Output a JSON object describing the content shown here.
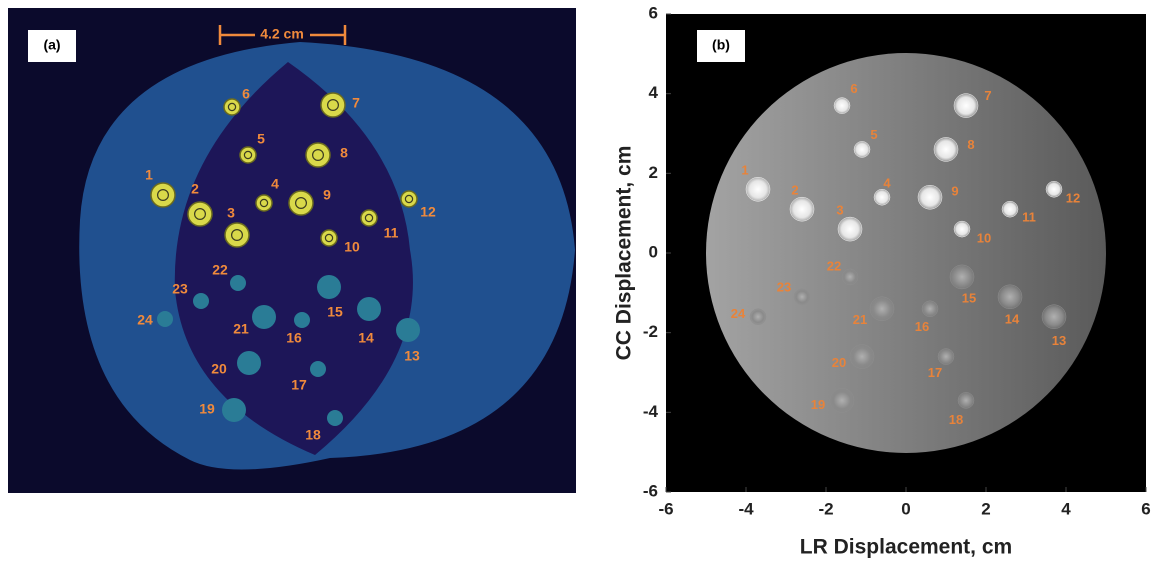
{
  "panel_a": {
    "tag": "(a)",
    "scale_bar": "4.2 cm",
    "markers": [
      "1",
      "2",
      "3",
      "4",
      "5",
      "6",
      "7",
      "8",
      "9",
      "10",
      "11",
      "12",
      "13",
      "14",
      "15",
      "16",
      "17",
      "18",
      "19",
      "20",
      "21",
      "22",
      "23",
      "24"
    ]
  },
  "chart_data": {
    "type": "scatter",
    "tag": "(b)",
    "x_label": "LR Displacement,  cm",
    "y_label": "CC Displacement,  cm",
    "xlim": [
      -6,
      6
    ],
    "ylim": [
      -6,
      6
    ],
    "xticks": [
      -6,
      -4,
      -2,
      0,
      2,
      4,
      6
    ],
    "yticks": [
      -6,
      -4,
      -2,
      0,
      2,
      4,
      6
    ],
    "phantom_radius": 5,
    "series": [
      {
        "color": "#f4f4f4",
        "labels": [
          "1",
          "2",
          "3",
          "4",
          "5",
          "6",
          "7",
          "8",
          "9",
          "10",
          "11",
          "12"
        ],
        "x": [
          -3.7,
          -2.6,
          -1.4,
          -0.6,
          -1.1,
          -1.6,
          1.5,
          1.0,
          0.6,
          1.4,
          2.6,
          3.7
        ],
        "values": [
          1.6,
          1.1,
          0.6,
          1.4,
          2.6,
          3.7,
          3.7,
          2.6,
          1.4,
          0.6,
          1.1,
          1.6
        ],
        "sizes": [
          0.6,
          0.6,
          0.6,
          0.4,
          0.4,
          0.4,
          0.6,
          0.6,
          0.6,
          0.4,
          0.4,
          0.4
        ]
      },
      {
        "color": "#8f8f8f",
        "labels": [
          "13",
          "14",
          "15",
          "16",
          "17",
          "18",
          "19",
          "20",
          "21",
          "22",
          "23",
          "24"
        ],
        "x": [
          3.7,
          2.6,
          1.4,
          0.6,
          1.0,
          1.5,
          -1.6,
          -1.1,
          -0.6,
          -1.4,
          -2.6,
          -3.7
        ],
        "values": [
          -1.6,
          -1.1,
          -0.6,
          -1.4,
          -2.6,
          -3.7,
          -3.7,
          -2.6,
          -1.4,
          -0.6,
          -1.1,
          -1.6
        ],
        "sizes": [
          0.6,
          0.6,
          0.6,
          0.4,
          0.4,
          0.4,
          0.6,
          0.6,
          0.6,
          0.4,
          0.4,
          0.4
        ]
      }
    ]
  }
}
